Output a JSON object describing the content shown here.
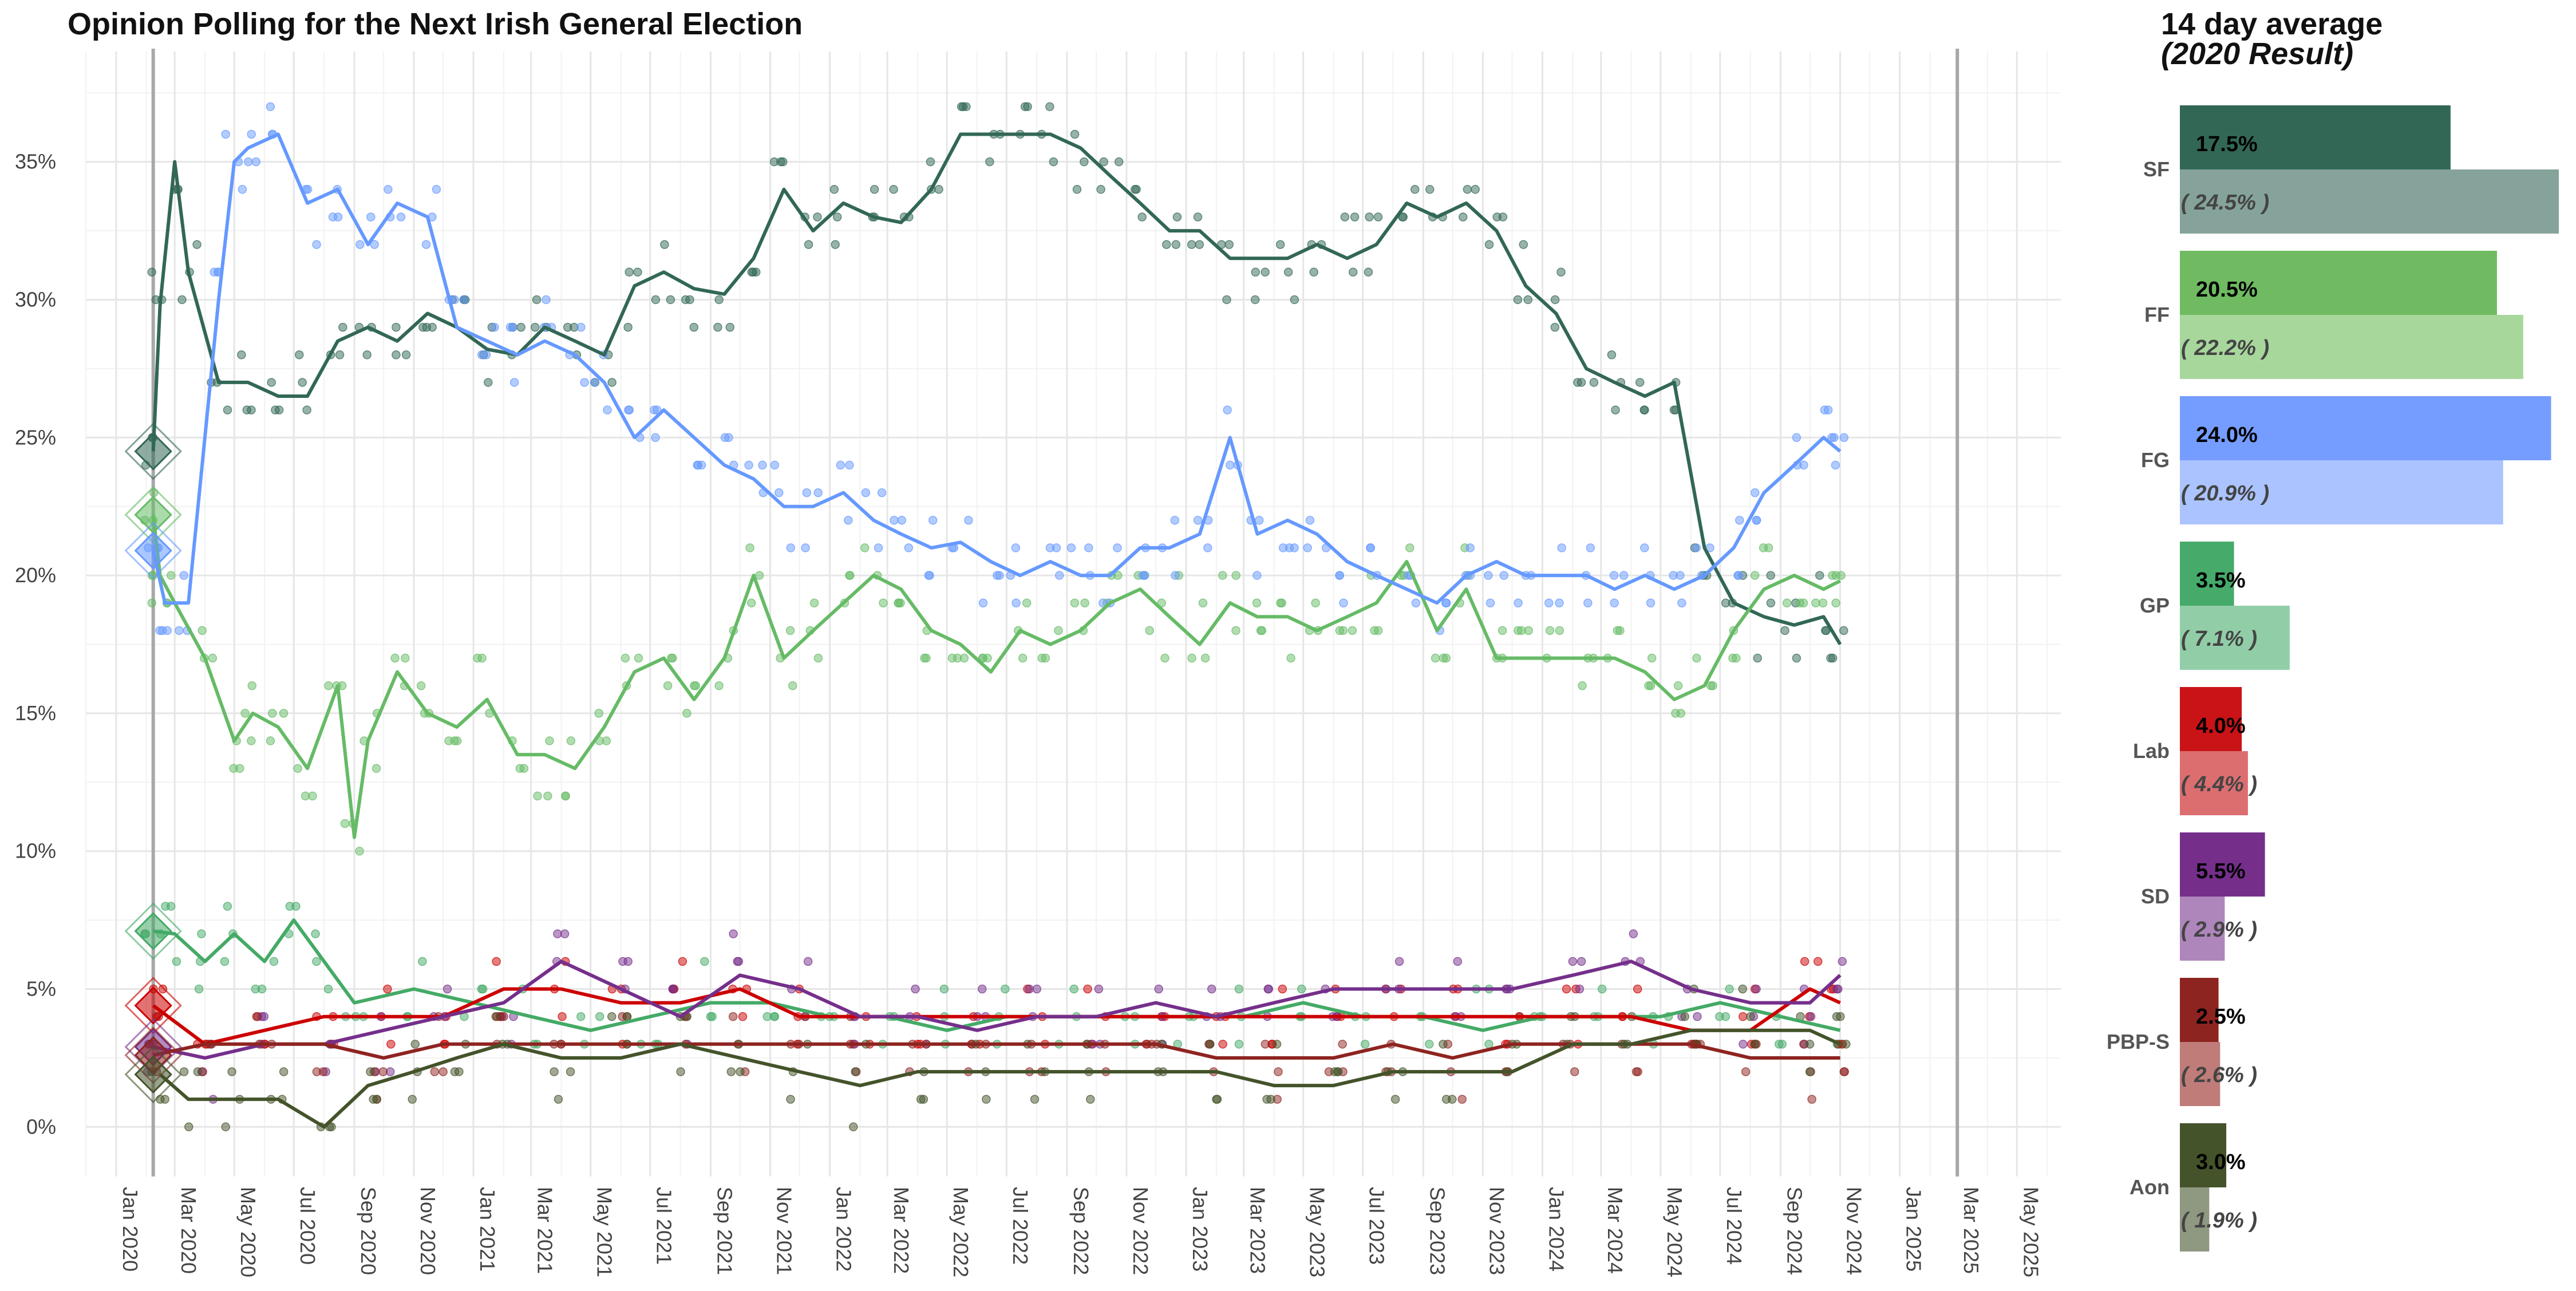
{
  "chart_data": {
    "type": "line",
    "title": "Opinion Polling for the Next Irish General Election",
    "y_axis": {
      "ylim": [
        0,
        39
      ],
      "ticks": [
        0,
        5,
        10,
        15,
        20,
        25,
        30,
        35
      ],
      "tick_labels": [
        "0%",
        "5%",
        "10%",
        "15%",
        "20%",
        "25%",
        "30%",
        "35%"
      ]
    },
    "x_axis": {
      "xlim": [
        "2019-12-01",
        "2025-06-15"
      ],
      "tick_dates": [
        "2020-01-01",
        "2020-03-01",
        "2020-05-01",
        "2020-07-01",
        "2020-09-01",
        "2020-11-01",
        "2021-01-01",
        "2021-03-01",
        "2021-05-01",
        "2021-07-01",
        "2021-09-01",
        "2021-11-01",
        "2022-01-01",
        "2022-03-01",
        "2022-05-01",
        "2022-07-01",
        "2022-09-01",
        "2022-11-01",
        "2023-01-01",
        "2023-03-01",
        "2023-05-01",
        "2023-07-01",
        "2023-09-01",
        "2023-11-01",
        "2024-01-01",
        "2024-03-01",
        "2024-05-01",
        "2024-07-01",
        "2024-09-01",
        "2024-11-01",
        "2025-01-01",
        "2025-03-01",
        "2025-05-01"
      ],
      "tick_labels": [
        "Jan 2020",
        "Mar 2020",
        "May 2020",
        "Jul 2020",
        "Sep 2020",
        "Nov 2020",
        "Jan 2021",
        "Mar 2021",
        "May 2021",
        "Jul 2021",
        "Sep 2021",
        "Nov 2021",
        "Jan 2022",
        "Mar 2022",
        "May 2022",
        "Jul 2022",
        "Sep 2022",
        "Nov 2022",
        "Jan 2023",
        "Mar 2023",
        "May 2023",
        "Jul 2023",
        "Sep 2023",
        "Nov 2023",
        "Jan 2024",
        "Mar 2024",
        "May 2024",
        "Jul 2024",
        "Sep 2024",
        "Nov 2024",
        "Jan 2025",
        "Mar 2025",
        "May 2025"
      ],
      "grid": true
    },
    "vertical_lines": [
      "2020-02-08",
      "2025-03-01"
    ],
    "colors": {
      "SF": "#326756",
      "FF": "#66BB66",
      "FG": "#6699FF",
      "GP": "#44AA66",
      "Lab": "#CC0000",
      "SD": "#752F8B",
      "PBP-S": "#8E2420",
      "Aon": "#44532A"
    },
    "series": [
      {
        "name": "SF",
        "color": "#326756",
        "x": [
          "2020-02-08",
          "2020-02-15",
          "2020-03-01",
          "2020-03-15",
          "2020-04-15",
          "2020-05-15",
          "2020-06-15",
          "2020-07-15",
          "2020-08-15",
          "2020-09-15",
          "2020-10-15",
          "2020-11-15",
          "2020-12-15",
          "2021-01-15",
          "2021-02-15",
          "2021-03-15",
          "2021-04-15",
          "2021-05-15",
          "2021-06-15",
          "2021-07-15",
          "2021-08-15",
          "2021-09-15",
          "2021-10-15",
          "2021-11-15",
          "2021-12-15",
          "2022-01-15",
          "2022-02-15",
          "2022-03-15",
          "2022-04-15",
          "2022-05-15",
          "2022-06-15",
          "2022-07-15",
          "2022-08-15",
          "2022-09-15",
          "2022-10-15",
          "2022-11-15",
          "2022-12-15",
          "2023-01-15",
          "2023-02-15",
          "2023-03-15",
          "2023-04-15",
          "2023-05-15",
          "2023-06-15",
          "2023-07-15",
          "2023-08-15",
          "2023-09-15",
          "2023-10-15",
          "2023-11-15",
          "2023-12-15",
          "2024-01-15",
          "2024-02-15",
          "2024-03-15",
          "2024-04-15",
          "2024-05-15",
          "2024-06-15",
          "2024-07-15",
          "2024-08-15",
          "2024-09-15",
          "2024-10-15",
          "2024-11-01"
        ],
        "y": [
          24.5,
          29.8,
          35,
          31,
          27,
          27,
          26.5,
          26.5,
          28.5,
          29,
          28.5,
          29.5,
          29,
          28.2,
          28,
          29,
          28.5,
          28,
          30.5,
          31,
          30.4,
          30.2,
          31.5,
          34,
          32.5,
          33.5,
          33,
          32.8,
          34,
          36,
          36,
          36,
          36,
          35.5,
          34.5,
          33.5,
          32.5,
          32.5,
          31.5,
          31.5,
          31.5,
          32,
          31.5,
          32,
          33.5,
          33,
          33.5,
          32.5,
          30.5,
          29.5,
          27.5,
          27,
          26.5,
          27,
          21,
          19,
          18.5,
          18.2,
          18.5,
          17.5
        ]
      },
      {
        "name": "FF",
        "color": "#66BB66",
        "x": [
          "2020-02-08",
          "2020-02-15",
          "2020-03-01",
          "2020-04-01",
          "2020-05-01",
          "2020-05-20",
          "2020-06-15",
          "2020-07-15",
          "2020-08-15",
          "2020-09-01",
          "2020-09-15",
          "2020-10-15",
          "2020-11-15",
          "2020-12-15",
          "2021-01-15",
          "2021-02-15",
          "2021-03-15",
          "2021-04-15",
          "2021-05-15",
          "2021-06-15",
          "2021-07-15",
          "2021-08-15",
          "2021-09-15",
          "2021-10-15",
          "2021-11-15",
          "2021-12-15",
          "2022-01-15",
          "2022-02-15",
          "2022-03-15",
          "2022-04-15",
          "2022-05-15",
          "2022-06-15",
          "2022-07-15",
          "2022-08-15",
          "2022-09-15",
          "2022-10-15",
          "2022-11-15",
          "2022-12-15",
          "2023-01-15",
          "2023-02-15",
          "2023-03-15",
          "2023-04-15",
          "2023-05-15",
          "2023-06-15",
          "2023-07-15",
          "2023-08-15",
          "2023-09-15",
          "2023-10-15",
          "2023-11-15",
          "2023-12-15",
          "2024-01-15",
          "2024-02-15",
          "2024-03-15",
          "2024-04-15",
          "2024-05-15",
          "2024-06-15",
          "2024-07-15",
          "2024-08-15",
          "2024-09-15",
          "2024-10-15",
          "2024-11-01"
        ],
        "y": [
          22.2,
          20,
          19,
          17,
          14,
          15,
          14.5,
          13,
          16,
          10.5,
          14,
          16.5,
          15,
          14.5,
          15.5,
          13.5,
          13.5,
          13,
          14.5,
          16.5,
          17,
          15.5,
          17,
          20,
          17,
          18,
          19,
          20,
          19.5,
          18,
          17.5,
          16.5,
          18,
          17.5,
          18,
          19,
          19.5,
          18.5,
          17.5,
          19,
          18.5,
          18.5,
          18,
          18.5,
          19,
          20.5,
          18,
          19.5,
          17,
          17,
          17,
          17,
          17,
          16.5,
          15.5,
          16,
          18,
          19.5,
          20,
          19.5,
          19.8
        ]
      },
      {
        "name": "FG",
        "color": "#6699FF",
        "x": [
          "2020-02-08",
          "2020-02-20",
          "2020-03-15",
          "2020-04-15",
          "2020-05-01",
          "2020-05-15",
          "2020-06-15",
          "2020-07-15",
          "2020-08-15",
          "2020-09-15",
          "2020-10-15",
          "2020-11-15",
          "2020-12-15",
          "2021-01-15",
          "2021-02-15",
          "2021-03-15",
          "2021-04-15",
          "2021-05-15",
          "2021-06-15",
          "2021-07-15",
          "2021-08-15",
          "2021-09-15",
          "2021-10-15",
          "2021-11-15",
          "2021-12-15",
          "2022-01-15",
          "2022-02-15",
          "2022-03-15",
          "2022-04-15",
          "2022-05-15",
          "2022-06-15",
          "2022-07-15",
          "2022-08-15",
          "2022-09-15",
          "2022-10-15",
          "2022-11-15",
          "2022-12-15",
          "2023-01-15",
          "2023-02-15",
          "2023-03-15",
          "2023-04-15",
          "2023-05-15",
          "2023-06-15",
          "2023-07-15",
          "2023-08-15",
          "2023-09-15",
          "2023-10-15",
          "2023-11-15",
          "2023-12-15",
          "2024-01-15",
          "2024-02-15",
          "2024-03-15",
          "2024-04-15",
          "2024-05-15",
          "2024-06-15",
          "2024-07-15",
          "2024-08-15",
          "2024-09-15",
          "2024-10-15",
          "2024-11-01"
        ],
        "y": [
          20.9,
          19,
          19,
          30,
          35,
          35.5,
          36,
          33.5,
          34,
          32,
          33.5,
          33,
          29,
          28.5,
          28,
          28.5,
          28,
          27,
          25,
          26,
          25,
          24,
          23.5,
          22.5,
          22.5,
          23,
          22,
          21.5,
          21,
          21.2,
          20.5,
          20,
          20.5,
          20,
          20,
          21,
          21,
          21.5,
          25,
          21.5,
          22,
          21.5,
          20.5,
          20,
          19.5,
          19,
          20,
          20.5,
          20,
          20,
          20,
          19.5,
          20,
          19.5,
          20,
          21,
          23,
          24,
          25,
          24.5
        ]
      },
      {
        "name": "GP",
        "color": "#44AA66",
        "x": [
          "2020-02-08",
          "2020-03-01",
          "2020-04-01",
          "2020-05-01",
          "2020-06-01",
          "2020-07-01",
          "2020-08-01",
          "2020-09-01",
          "2020-11-01",
          "2021-01-01",
          "2021-03-01",
          "2021-05-01",
          "2021-07-01",
          "2021-09-01",
          "2021-11-01",
          "2022-01-01",
          "2022-03-01",
          "2022-05-01",
          "2022-07-01",
          "2022-09-01",
          "2022-11-01",
          "2023-01-01",
          "2023-03-01",
          "2023-05-01",
          "2023-07-01",
          "2023-09-01",
          "2023-11-01",
          "2024-01-01",
          "2024-03-01",
          "2024-05-01",
          "2024-07-01",
          "2024-09-01",
          "2024-11-01"
        ],
        "y": [
          7.1,
          7,
          6,
          7,
          6,
          7.5,
          6,
          4.5,
          5,
          4.5,
          4,
          3.5,
          4,
          4.5,
          4.5,
          4,
          4,
          3.5,
          4,
          4,
          4,
          4,
          4,
          4.5,
          4,
          4,
          3.5,
          4,
          4,
          4,
          4.5,
          4,
          3.5
        ]
      },
      {
        "name": "Lab",
        "color": "#CC0000",
        "x": [
          "2020-02-08",
          "2020-04-01",
          "2020-06-01",
          "2020-08-01",
          "2020-10-01",
          "2020-12-01",
          "2021-02-01",
          "2021-04-01",
          "2021-06-01",
          "2021-08-01",
          "2021-10-01",
          "2021-12-01",
          "2022-02-01",
          "2022-04-01",
          "2022-06-01",
          "2022-08-01",
          "2022-10-01",
          "2022-12-01",
          "2023-02-01",
          "2023-04-01",
          "2023-06-01",
          "2023-08-01",
          "2023-10-01",
          "2023-12-01",
          "2024-02-01",
          "2024-04-01",
          "2024-06-01",
          "2024-08-01",
          "2024-10-01",
          "2024-11-01"
        ],
        "y": [
          4.4,
          3,
          3.5,
          4,
          4,
          4,
          5,
          5,
          4.5,
          4.5,
          5,
          4,
          4,
          4,
          4,
          4,
          4,
          4,
          4,
          4,
          4,
          4,
          4,
          4,
          4,
          4,
          3.5,
          3.5,
          5,
          4.5
        ]
      },
      {
        "name": "SD",
        "color": "#752F8B",
        "x": [
          "2020-02-08",
          "2020-04-01",
          "2020-06-01",
          "2020-08-01",
          "2020-10-01",
          "2020-12-01",
          "2021-02-01",
          "2021-04-01",
          "2021-06-01",
          "2021-08-01",
          "2021-10-01",
          "2021-12-01",
          "2022-02-01",
          "2022-04-01",
          "2022-06-01",
          "2022-08-01",
          "2022-10-01",
          "2022-12-01",
          "2023-02-01",
          "2023-04-01",
          "2023-06-01",
          "2023-08-01",
          "2023-10-01",
          "2023-12-01",
          "2024-02-01",
          "2024-04-01",
          "2024-06-01",
          "2024-08-01",
          "2024-10-01",
          "2024-11-01"
        ],
        "y": [
          2.9,
          2.5,
          3,
          3,
          3.5,
          4,
          4.5,
          6,
          5,
          4,
          5.5,
          5,
          4,
          4,
          3.5,
          4,
          4,
          4.5,
          4,
          4.5,
          5,
          5,
          5,
          5,
          5.5,
          6,
          5,
          4.5,
          4.5,
          5.5
        ]
      },
      {
        "name": "PBP-S",
        "color": "#8E2420",
        "x": [
          "2020-02-08",
          "2020-04-01",
          "2020-06-01",
          "2020-08-01",
          "2020-10-01",
          "2020-12-01",
          "2021-02-01",
          "2021-04-01",
          "2021-06-01",
          "2021-08-01",
          "2021-10-01",
          "2021-12-01",
          "2022-02-01",
          "2022-04-01",
          "2022-06-01",
          "2022-08-01",
          "2022-10-01",
          "2022-12-01",
          "2023-02-01",
          "2023-04-01",
          "2023-06-01",
          "2023-08-01",
          "2023-10-01",
          "2023-12-01",
          "2024-02-01",
          "2024-04-01",
          "2024-06-01",
          "2024-08-01",
          "2024-10-01",
          "2024-11-01"
        ],
        "y": [
          2.6,
          3,
          3,
          3,
          2.5,
          3,
          3,
          3,
          3,
          3,
          3,
          3,
          3,
          3,
          3,
          3,
          3,
          3,
          2.5,
          2.5,
          2.5,
          3,
          2.5,
          3,
          3,
          3,
          3,
          2.5,
          2.5,
          2.5
        ]
      },
      {
        "name": "Aon",
        "color": "#44532A",
        "x": [
          "2020-02-15",
          "2020-03-15",
          "2020-05-01",
          "2020-06-15",
          "2020-08-01",
          "2020-09-15",
          "2020-11-01",
          "2020-12-15",
          "2021-02-01",
          "2021-04-01",
          "2021-06-01",
          "2021-08-01",
          "2021-10-01",
          "2021-12-01",
          "2022-02-01",
          "2022-04-01",
          "2022-06-01",
          "2022-08-01",
          "2022-10-01",
          "2022-12-01",
          "2023-02-01",
          "2023-04-01",
          "2023-06-01",
          "2023-08-01",
          "2023-10-01",
          "2023-12-01",
          "2024-02-01",
          "2024-04-01",
          "2024-06-01",
          "2024-08-01",
          "2024-10-01",
          "2024-11-01"
        ],
        "y": [
          1.9,
          1,
          1,
          1,
          0,
          1.5,
          2,
          2.5,
          3,
          2.5,
          2.5,
          3,
          2.5,
          2,
          1.5,
          2,
          2,
          2,
          2,
          2,
          2,
          1.5,
          1.5,
          2,
          2,
          2,
          3,
          3,
          3.5,
          3.5,
          3.5,
          3
        ]
      }
    ],
    "markers_2020": [
      {
        "name": "SF",
        "value": 24.5
      },
      {
        "name": "FF",
        "value": 22.2
      },
      {
        "name": "FG",
        "value": 20.9
      },
      {
        "name": "GP",
        "value": 7.1
      },
      {
        "name": "Lab",
        "value": 4.4
      },
      {
        "name": "SD",
        "value": 2.9
      },
      {
        "name": "PBP-S",
        "value": 2.6
      },
      {
        "name": "Aon",
        "value": 1.9
      }
    ]
  },
  "side_panel": {
    "title": "14 day average",
    "subtitle": "(2020 Result)",
    "bars": [
      {
        "party": "SF",
        "avg": 17.5,
        "avg_label": "17.5%",
        "result": 24.5,
        "result_label": "( 24.5% )",
        "color": "#326756",
        "light_color": "#85A39A"
      },
      {
        "party": "FF",
        "avg": 20.5,
        "avg_label": "20.5%",
        "result": 22.2,
        "result_label": "( 22.2% )",
        "color": "#70BB62",
        "light_color": "#A8D79C"
      },
      {
        "party": "FG",
        "avg": 24.0,
        "avg_label": "24.0%",
        "result": 20.9,
        "result_label": "( 20.9% )",
        "color": "#759DFF",
        "light_color": "#ABC4FF"
      },
      {
        "party": "GP",
        "avg": 3.5,
        "avg_label": "3.5%",
        "result": 7.1,
        "result_label": "( 7.1% )",
        "color": "#46AA6B",
        "light_color": "#91CEA7"
      },
      {
        "party": "Lab",
        "avg": 4.0,
        "avg_label": "4.0%",
        "result": 4.4,
        "result_label": "( 4.4% )",
        "color": "#C91317",
        "light_color": "#DC6E70"
      },
      {
        "party": "SD",
        "avg": 5.5,
        "avg_label": "5.5%",
        "result": 2.9,
        "result_label": "( 2.9% )",
        "color": "#752F8B",
        "light_color": "#AE86BB"
      },
      {
        "party": "PBP-S",
        "avg": 2.5,
        "avg_label": "2.5%",
        "result": 2.6,
        "result_label": "( 2.6% )",
        "color": "#8E2420",
        "light_color": "#BF7C79"
      },
      {
        "party": "Aon",
        "avg": 3.0,
        "avg_label": "3.0%",
        "result": 1.9,
        "result_label": "( 1.9% )",
        "color": "#44532A",
        "light_color": "#8F9880"
      }
    ],
    "xmax": 24.5
  }
}
